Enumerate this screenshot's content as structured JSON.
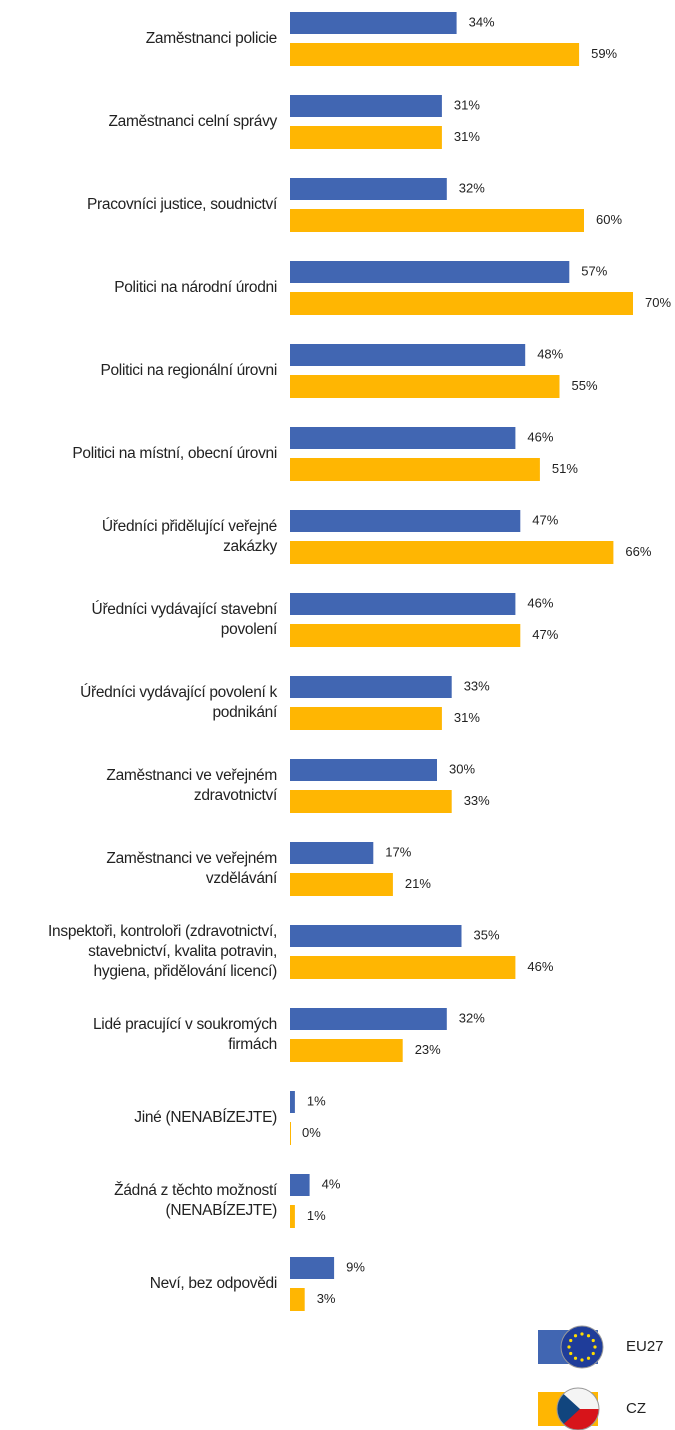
{
  "chart_data": {
    "type": "bar",
    "orientation": "horizontal",
    "categories": [
      "Zaměstnanci policie",
      "Zaměstnanci celní správy",
      "Pracovníci justice, soudnictví",
      "Politici na národní úrodni",
      "Politici na regionální úrovni",
      "Politici na místní, obecní úrovni",
      "Úředníci přidělující veřejné\nzakázky",
      "Úředníci vydávající stavební\npovolení",
      "Úředníci vydávající povolení k\npodnikání",
      "Zaměstnanci ve veřejném\nzdravotnictví",
      "Zaměstnanci ve veřejném\nvzdělávání",
      "Inspektoři, kontroloři (zdravotnictví,\nstavebnictví, kvalita potravin,\nhygiena, přidělování licencí)",
      "Lidé pracující v soukromých\nfirmách",
      "Jiné (NENABÍZEJTE)",
      "Žádná z těchto možností\n(NENABÍZEJTE)",
      "Neví, bez odpovědi"
    ],
    "series": [
      {
        "name": "EU27",
        "color": "#4166b2",
        "values": [
          34,
          31,
          32,
          57,
          48,
          46,
          47,
          46,
          33,
          30,
          17,
          35,
          32,
          1,
          4,
          9
        ],
        "value_labels": [
          "34%",
          "31%",
          "32%",
          "57%",
          "48%",
          "46%",
          "47%",
          "46%",
          "33%",
          "30%",
          "17%",
          "35%",
          "32%",
          "1%",
          "4%",
          "9%"
        ]
      },
      {
        "name": "CZ",
        "color": "#ffb602",
        "values": [
          59,
          31,
          60,
          70,
          55,
          51,
          66,
          47,
          31,
          33,
          21,
          46,
          23,
          0,
          1,
          3
        ],
        "value_labels": [
          "59%",
          "31%",
          "60%",
          "70%",
          "55%",
          "51%",
          "66%",
          "47%",
          "31%",
          "33%",
          "21%",
          "46%",
          "23%",
          "0%",
          "1%",
          "3%"
        ]
      }
    ],
    "xlim": [
      0,
      70
    ]
  }
}
